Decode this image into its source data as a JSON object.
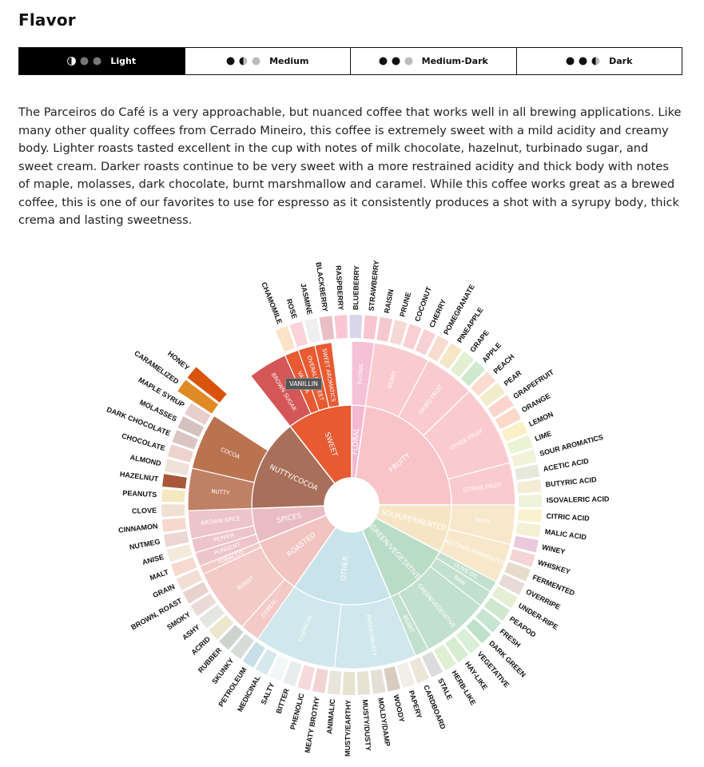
{
  "title": "Flavor",
  "tabs": [
    {
      "label": "Light",
      "level": 1,
      "active": true
    },
    {
      "label": "Medium",
      "level": 2,
      "active": false
    },
    {
      "label": "Medium-Dark",
      "level": 3,
      "active": false
    },
    {
      "label": "Dark",
      "level": 4,
      "active": false
    }
  ],
  "description": "The Parceiros do Café is a very approachable, but nuanced coffee that works well in all brewing applications. Like many other quality coffees from Cerrado Mineiro, this coffee is extremely sweet with a mild acidity and creamy body. Lighter roasts tasted excellent in the cup with notes of milk chocolate, hazelnut, turbinado sugar, and sweet cream. Darker roasts continue to be very sweet with a more restrained acidity and thick body with notes of maple, molasses, dark chocolate, burnt marshmallow and caramel. While this coffee works great as a brewed coffee, this is one of our favorites to use for espresso as it consistently produces a shot with a syrupy body, thick crema and lasting sweetness.",
  "tooltip": "VANILLIN",
  "wheel": {
    "categories": [
      {
        "name": "FLORAL",
        "color": "#f4b8cf"
      },
      {
        "name": "FRUITY",
        "color": "#f8c4c8"
      },
      {
        "name": "SOUR/FERMENTED",
        "color": "#f6e5c4"
      },
      {
        "name": "GREEN/VEGETATIVE",
        "color": "#b9dcc6"
      },
      {
        "name": "OTHER",
        "color": "#c8e4ea"
      },
      {
        "name": "ROASTED",
        "color": "#f1c3c1"
      },
      {
        "name": "SPICES",
        "color": "#e9bcc3"
      },
      {
        "name": "NUTTY/COCOA",
        "color": "#a86f5a"
      },
      {
        "name": "SWEET",
        "color": "#e85a32"
      }
    ],
    "subcategories": [
      "FLORAL",
      "BERRY",
      "DRIED FRUIT",
      "OTHER FRUIT",
      "CITRUS FRUIT",
      "SOUR",
      "ALCOHOL/FERMENTED",
      "OLIVE OIL",
      "RAW",
      "GREEN/VEGETATIVE",
      "BEANY",
      "PAPERY/MUSTY",
      "CHEMICAL",
      "CEREAL",
      "BURNT",
      "TOBACCO",
      "PUNGENT",
      "PEPPER",
      "BROWN SPICE",
      "NUTTY",
      "COCOA",
      "BROWN SUGAR",
      "VANILLA",
      "OVERALL SWEET",
      "SWEET AROMATICS"
    ],
    "flavors": [
      "CHAMOMILE",
      "ROSE",
      "JASMINE",
      "BLACKBERRY",
      "RASPBERRY",
      "BLUEBERRY",
      "STRAWBERRY",
      "RAISIN",
      "PRUNE",
      "COCONUT",
      "CHERRY",
      "POMEGRANATE",
      "PINEAPPLE",
      "GRAPE",
      "APPLE",
      "PEACH",
      "PEAR",
      "GRAPEFRUIT",
      "ORANGE",
      "LEMON",
      "LIME",
      "SOUR AROMATICS",
      "ACETIC ACID",
      "BUTYRIC ACID",
      "ISOVALERIC ACID",
      "CITRIC ACID",
      "MALIC ACID",
      "WINEY",
      "WHISKEY",
      "FERMENTED",
      "OVERRIPE",
      "UNDER-RIPE",
      "PEAPOD",
      "FRESH",
      "DARK GREEN",
      "VEGETATIVE",
      "HAY-LIKE",
      "HERB-LIKE",
      "STALE",
      "CARDBOARD",
      "PAPERY",
      "WOODY",
      "MOLDY/DAMP",
      "MUSTY/DUSTY",
      "MUSTY/EARTHY",
      "ANIMALIC",
      "MEATY BROTHY",
      "PHENOLIC",
      "BITTER",
      "SALTY",
      "MEDICINAL",
      "PETROLEUM",
      "SKUNKY",
      "RUBBER",
      "ACRID",
      "ASHY",
      "SMOKY",
      "BROWN, ROAST",
      "GRAIN",
      "MALT",
      "ANISE",
      "NUTMEG",
      "CINNAMON",
      "CLOVE",
      "PEANUTS",
      "HAZELNUT",
      "ALMOND",
      "CHOCOLATE",
      "DARK CHOCOLATE",
      "MOLASSES",
      "MAPLE SYRUP",
      "CARAMELIZED",
      "HONEY"
    ]
  }
}
